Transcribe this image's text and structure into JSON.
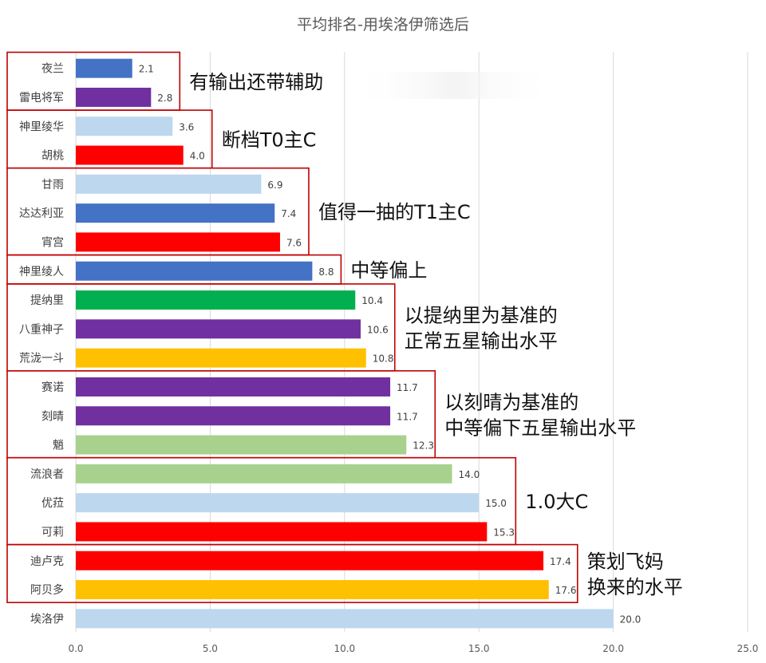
{
  "chart_data": {
    "type": "bar",
    "orientation": "horizontal",
    "title": "平均排名-用埃洛伊筛选后",
    "categories": [
      "夜兰",
      "雷电将军",
      "神里绫华",
      "胡桃",
      "甘雨",
      "达达利亚",
      "宵宫",
      "神里绫人",
      "提纳里",
      "八重神子",
      "荒泷一斗",
      "赛诺",
      "刻晴",
      "魈",
      "流浪者",
      "优菈",
      "可莉",
      "迪卢克",
      "阿贝多",
      "埃洛伊"
    ],
    "values": [
      2.1,
      2.8,
      3.6,
      4.0,
      6.9,
      7.4,
      7.6,
      8.8,
      10.4,
      10.6,
      10.8,
      11.7,
      11.7,
      12.3,
      14.0,
      15.0,
      15.3,
      17.4,
      17.6,
      20.0
    ],
    "value_labels": [
      "2.1",
      "2.8",
      "3.6",
      "4.0",
      "6.9",
      "7.4",
      "7.6",
      "8.8",
      "10.4",
      "10.6",
      "10.8",
      "11.7",
      "11.7",
      "12.3",
      "14.0",
      "15.0",
      "15.3",
      "17.4",
      "17.6",
      "20.0"
    ],
    "bar_colors": [
      "#4472c4",
      "#7030a0",
      "#bdd7ee",
      "#ff0000",
      "#bdd7ee",
      "#4472c4",
      "#ff0000",
      "#4472c4",
      "#00b050",
      "#7030a0",
      "#ffc000",
      "#7030a0",
      "#7030a0",
      "#a9d18e",
      "#a9d18e",
      "#bdd7ee",
      "#ff0000",
      "#ff0000",
      "#ffc000",
      "#bdd7ee"
    ],
    "xlim": [
      0,
      25
    ],
    "x_ticks": [
      "0.0",
      "5.0",
      "10.0",
      "15.0",
      "20.0",
      "25.0"
    ],
    "x_tick_values": [
      0,
      5,
      10,
      15,
      20,
      25
    ],
    "grid": true,
    "legend": "none",
    "groups": [
      {
        "from": 0,
        "to": 1,
        "annotation": [
          "有输出还带辅助"
        ]
      },
      {
        "from": 2,
        "to": 3,
        "annotation": [
          "断档T0主C"
        ]
      },
      {
        "from": 4,
        "to": 6,
        "annotation": [
          "值得一抽的T1主C"
        ]
      },
      {
        "from": 7,
        "to": 7,
        "annotation": [
          "中等偏上"
        ]
      },
      {
        "from": 8,
        "to": 10,
        "annotation": [
          "以提纳里为基准的",
          "正常五星输出水平"
        ]
      },
      {
        "from": 11,
        "to": 13,
        "annotation": [
          "以刻晴为基准的",
          "中等偏下五星输出水平"
        ]
      },
      {
        "from": 14,
        "to": 16,
        "annotation": [
          "1.0大C"
        ]
      },
      {
        "from": 17,
        "to": 18,
        "annotation": [
          "策划飞妈",
          "换来的水平"
        ]
      }
    ]
  }
}
